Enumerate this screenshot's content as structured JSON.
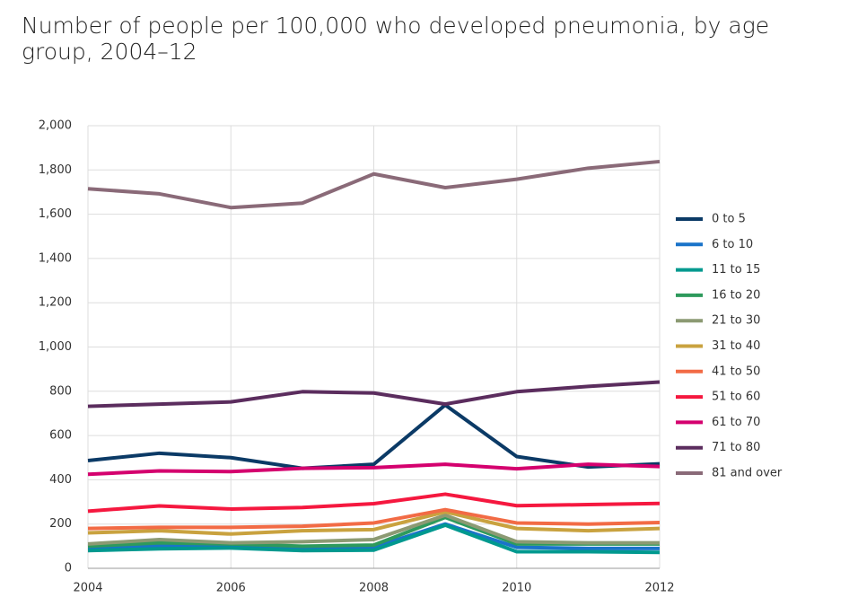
{
  "chart_data": {
    "type": "line",
    "title": "Number of people per 100,000 who developed pneumonia, by age group, 2004–12",
    "x": [
      2004,
      2005,
      2006,
      2007,
      2008,
      2009,
      2010,
      2011,
      2012
    ],
    "xlim": [
      2004,
      2012
    ],
    "xticks": [
      2004,
      2006,
      2008,
      2010,
      2012
    ],
    "ylim": [
      0,
      2000
    ],
    "yticks": [
      0,
      200,
      400,
      600,
      800,
      {
        "value": 1000,
        "label": "1,000"
      },
      {
        "value": 1200,
        "label": "1,200"
      },
      {
        "value": 1400,
        "label": "1,400"
      },
      {
        "value": 1600,
        "label": "1,600"
      },
      {
        "value": 1800,
        "label": "1,800"
      },
      {
        "value": 2000,
        "label": "2,000"
      }
    ],
    "grid": true,
    "legend": "right",
    "series": [
      {
        "name": "0 to 5",
        "color": "#0b3a66",
        "values": [
          487,
          520,
          500,
          452,
          470,
          738,
          505,
          458,
          472
        ]
      },
      {
        "name": "6 to 10",
        "color": "#1a73c9",
        "values": [
          95,
          100,
          100,
          90,
          95,
          200,
          95,
          90,
          90
        ]
      },
      {
        "name": "11 to 15",
        "color": "#00998f",
        "values": [
          80,
          88,
          92,
          80,
          82,
          195,
          75,
          75,
          72
        ]
      },
      {
        "name": "16 to 20",
        "color": "#2e9a5c",
        "values": [
          100,
          115,
          110,
          100,
          105,
          230,
          110,
          110,
          110
        ]
      },
      {
        "name": "21 to 30",
        "color": "#8c9a73",
        "values": [
          110,
          130,
          115,
          120,
          130,
          240,
          120,
          115,
          115
        ]
      },
      {
        "name": "31 to 40",
        "color": "#c9a23f",
        "values": [
          160,
          170,
          155,
          170,
          175,
          255,
          180,
          170,
          180
        ]
      },
      {
        "name": "41 to 50",
        "color": "#f26b45",
        "values": [
          180,
          185,
          185,
          190,
          205,
          265,
          205,
          200,
          207
        ]
      },
      {
        "name": "51 to 60",
        "color": "#f5183f",
        "values": [
          258,
          282,
          268,
          275,
          292,
          335,
          283,
          288,
          293
        ]
      },
      {
        "name": "61 to 70",
        "color": "#d4006e",
        "values": [
          425,
          440,
          437,
          452,
          455,
          470,
          450,
          470,
          460
        ]
      },
      {
        "name": "71 to 80",
        "color": "#5b2d5e",
        "values": [
          732,
          742,
          752,
          798,
          792,
          742,
          798,
          822,
          842
        ]
      },
      {
        "name": "81 and over",
        "color": "#8a6a78",
        "values": [
          1715,
          1692,
          1630,
          1650,
          1782,
          1720,
          1758,
          1808,
          1838
        ]
      }
    ]
  }
}
